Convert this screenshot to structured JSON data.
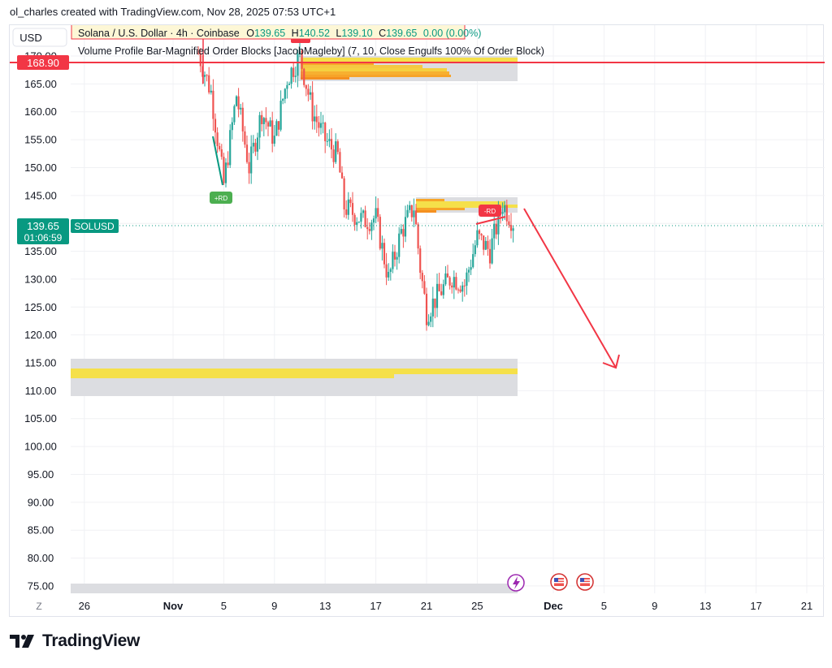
{
  "credit": "ol_charles created with TradingView.com, Nov 28, 2025 07:53 UTC+1",
  "brand": "TradingView",
  "currency_button": "USD",
  "timezone_button": "Z",
  "legend": {
    "symbol_line": {
      "title": "Solana / U.S. Dollar · 4h · Coinbase",
      "o_label": "O",
      "o_value": "139.65",
      "h_label": "H",
      "h_value": "140.52",
      "l_label": "L",
      "l_value": "139.10",
      "c_label": "C",
      "c_value": "139.65",
      "change": "0.00 (0.00%)"
    },
    "indicator_line": "Volume Profile Bar-Magnified Order Blocks [JacobMagleby] (7, 10, Close Engulfs 100% Of Order Block)"
  },
  "price_labels": {
    "horizontal_line": "168.90",
    "last_price": "139.65",
    "countdown": "01:06:59",
    "symbol": "SOLUSD"
  },
  "markers": {
    "bull": "+RD",
    "bear": "-RD"
  },
  "colors": {
    "up": "#26a69a",
    "down": "#ef5350",
    "hline": "#f23645",
    "last_price_tag": "#089981",
    "zone_fill": "#dcdde1",
    "profile_yellow": "#f5e04a",
    "profile_orange": "#f7a428",
    "arrow": "#f23645"
  },
  "chart_data": {
    "type": "candlestick",
    "title": "Solana / U.S. Dollar · 4h · Coinbase",
    "y_ticks": [
      "170.00",
      "165.00",
      "160.00",
      "155.00",
      "150.00",
      "145.00",
      "140.00",
      "135.00",
      "130.00",
      "125.00",
      "120.00",
      "115.00",
      "110.00",
      "105.00",
      "100.00",
      "95.00",
      "90.00",
      "85.00",
      "80.00",
      "75.00"
    ],
    "x_ticks": [
      "26",
      "Nov",
      "5",
      "9",
      "13",
      "17",
      "21",
      "25",
      "Dec",
      "5",
      "9",
      "13",
      "17",
      "21"
    ],
    "ylim": [
      74,
      171
    ],
    "grid": true,
    "horizontal_line": 168.9,
    "last_price": 139.65,
    "order_blocks": [
      {
        "from": "Nov 11",
        "top": 170.5,
        "bottom": 166.0
      },
      {
        "from": "Nov 20",
        "top": 144.8,
        "bottom": 142.8
      },
      {
        "from": "Nov 1",
        "top": 115.8,
        "bottom": 109.2
      },
      {
        "from": "Nov 1",
        "top": 75.6,
        "bottom": 74.0
      }
    ],
    "projection": {
      "from": [
        "Nov 29",
        142.0
      ],
      "to": [
        "Dec 6",
        114.0
      ]
    },
    "path": [
      [
        "Nov 3",
        170.5
      ],
      [
        "Nov 4",
        163.5
      ],
      [
        "Nov 5",
        147.0
      ],
      [
        "Nov 6",
        163.0
      ],
      [
        "Nov 7",
        150.0
      ],
      [
        "Nov 8",
        160.0
      ],
      [
        "Nov 9",
        155.0
      ],
      [
        "Nov 10",
        166.0
      ],
      [
        "Nov 11",
        170.0
      ],
      [
        "Nov 12",
        160.0
      ],
      [
        "Nov 13",
        155.0
      ],
      [
        "Nov 14",
        152.0
      ],
      [
        "Nov 14.5",
        143.0
      ],
      [
        "Nov 16",
        140.5
      ],
      [
        "Nov 17",
        141.0
      ],
      [
        "Nov 18",
        130.0
      ],
      [
        "Nov 19",
        138.5
      ],
      [
        "Nov 20",
        143.0
      ],
      [
        "Nov 20.5",
        132.0
      ],
      [
        "Nov 21",
        124.0
      ],
      [
        "Nov 22",
        127.5
      ],
      [
        "Nov 23",
        130.5
      ],
      [
        "Nov 24",
        129.0
      ],
      [
        "Nov 25",
        137.5
      ],
      [
        "Nov 26",
        135.0
      ],
      [
        "Nov 27",
        143.5
      ],
      [
        "Nov 28",
        139.6
      ]
    ]
  }
}
